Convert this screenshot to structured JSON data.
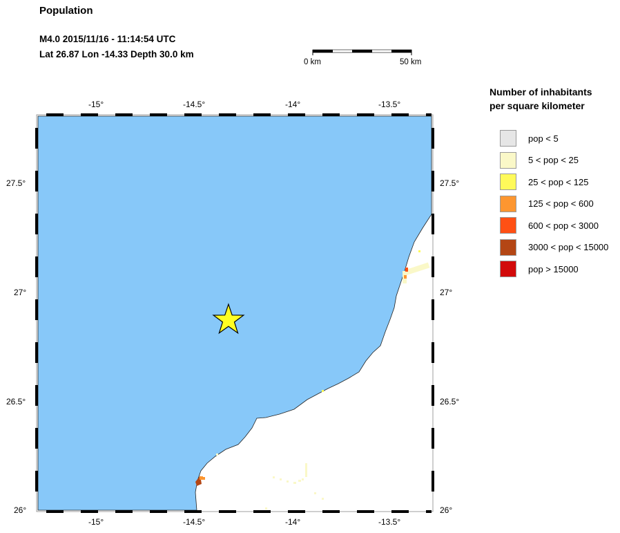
{
  "header": {
    "title": "Population",
    "event_line": "M4.0  2015/11/16 - 11:14:54 UTC",
    "location_line": "Lat 26.87    Lon -14.33     Depth  30.0 km"
  },
  "scale_bar": {
    "start_label": "0 km",
    "end_label": "50 km"
  },
  "map": {
    "ocean_color": "#87C8F9",
    "land_color": "#FFFFFF",
    "epicenter": {
      "lat": 26.87,
      "lon": -14.33,
      "marker": "star-icon",
      "color": "#FFFF22"
    },
    "lon_ticks": [
      "-15°",
      "-14.5°",
      "-14°",
      "-13.5°"
    ],
    "lat_ticks": [
      "27.5°",
      "27°",
      "26.5°",
      "26°"
    ]
  },
  "legend": {
    "title_line1": "Number of inhabitants",
    "title_line2": "per square kilometer",
    "items": [
      {
        "label": "pop < 5",
        "color": "#E6E6E6"
      },
      {
        "label": "5 < pop < 25",
        "color": "#FAF8C8"
      },
      {
        "label": "25 < pop < 125",
        "color": "#FFFA5A"
      },
      {
        "label": "125 < pop < 600",
        "color": "#FD9630"
      },
      {
        "label": "600 < pop < 3000",
        "color": "#FF5014"
      },
      {
        "label": "3000 < pop < 15000",
        "color": "#B44614"
      },
      {
        "label": "pop > 15000",
        "color": "#D20A0A"
      }
    ]
  }
}
